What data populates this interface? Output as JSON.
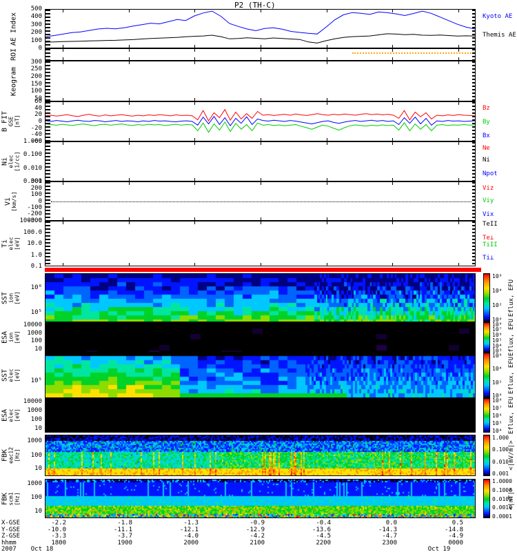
{
  "title": "P2 (TH-C)",
  "panels": {
    "ae": {
      "ylabel": [
        "AE Index"
      ],
      "yticks": [
        "500",
        "400",
        "300",
        "200",
        "100",
        "0"
      ],
      "legend": [
        {
          "label": "Kyoto AE",
          "color": "#0000ff"
        },
        {
          "label": "Themis AE",
          "color": "#000000"
        }
      ]
    },
    "roi": {
      "ylabel": [
        "ROI"
      ],
      "yticks": [],
      "legend": []
    },
    "keogram": {
      "ylabel": [
        "Keogram"
      ],
      "yticks": [
        "300",
        "250",
        "200",
        "150",
        "100",
        "50"
      ],
      "legend": []
    },
    "bfit": {
      "ylabel": [
        "B FIT",
        "GSE",
        "[nT]"
      ],
      "yticks": [
        "60",
        "40",
        "20",
        "0",
        "-20",
        "-40",
        "-60"
      ],
      "legend": [
        {
          "label": "Bz",
          "color": "#ff0000"
        },
        {
          "label": "By",
          "color": "#00cc00"
        },
        {
          "label": "Bx",
          "color": "#0000ff"
        }
      ]
    },
    "ni": {
      "ylabel": [
        "Ni",
        "elec",
        "[1/cc]"
      ],
      "yticks": [
        "1.000",
        "0.100",
        "0.010",
        "0.001"
      ],
      "legend": [
        {
          "label": "Ne",
          "color": "#ff0000"
        },
        {
          "label": "Ni",
          "color": "#000000"
        },
        {
          "label": "Npot",
          "color": "#0000ff"
        }
      ]
    },
    "vi": {
      "ylabel": [
        "Vi",
        "[km/s]"
      ],
      "yticks": [
        "300",
        "200",
        "100",
        "0",
        "-100",
        "-200",
        "-300"
      ],
      "legend": [
        {
          "label": "Viz",
          "color": "#ff0000"
        },
        {
          "label": "Viy",
          "color": "#00cc00"
        },
        {
          "label": "Vix",
          "color": "#0000ff"
        }
      ]
    },
    "ti": {
      "ylabel": [
        "Ti",
        "elec",
        "[eV]"
      ],
      "yticks": [
        "1000.0",
        "100.0",
        "10.0",
        "1.0",
        "0.1"
      ],
      "legend": [
        {
          "label": "TeII",
          "color": "#000000"
        },
        {
          "label": "Te⊥",
          "color": "#ff0000"
        },
        {
          "label": "TiII",
          "color": "#00cc00"
        },
        {
          "label": "Ti⊥",
          "color": "#0000ff"
        }
      ]
    },
    "sst_ion": {
      "ylabel": [
        "SST",
        "ion",
        "[eV]"
      ],
      "yticks": [
        "10⁶",
        "10⁵"
      ],
      "colorbar": {
        "ticks": [
          "10⁶",
          "10⁴",
          "10²",
          "10⁰"
        ],
        "unit": "Eflux, EFU"
      }
    },
    "esa_ion": {
      "ylabel": [
        "ESA",
        "ion",
        "[eV]"
      ],
      "yticks": [
        "10000",
        "1000",
        "100",
        "10"
      ],
      "colorbar": {
        "ticks": [
          "10⁸",
          "10⁷",
          "10⁶",
          "10⁵",
          "10⁴",
          "10³"
        ],
        "unit": "Eflux, EFU"
      }
    },
    "sst_elec": {
      "ylabel": [
        "SST",
        "elec",
        "[eV]"
      ],
      "yticks": [
        "10⁵"
      ],
      "colorbar": {
        "ticks": [
          "10⁶",
          "10⁴",
          "10²",
          "10⁰"
        ],
        "unit": "Eflux, EFU"
      }
    },
    "esa_elec": {
      "ylabel": [
        "ESA",
        "elec",
        "[eV]"
      ],
      "yticks": [
        "10000",
        "1000",
        "100",
        "10"
      ],
      "colorbar": {
        "ticks": [
          "10⁸",
          "10⁷",
          "10⁶",
          "10⁵",
          "10⁴"
        ],
        "unit": "Eflux, EFU"
      }
    },
    "fbk1": {
      "ylabel": [
        "FBK",
        "eac12",
        "[Hz]"
      ],
      "yticks": [
        "1000",
        "100",
        "10"
      ],
      "colorbar": {
        "ticks": [
          "1.000",
          "0.100",
          "0.010",
          "0.001"
        ],
        "unit": "<|mV/m|>"
      }
    },
    "fbk2": {
      "ylabel": [
        "FBK",
        "scm1",
        "[Hz]"
      ],
      "yticks": [
        "1000",
        "100",
        "10"
      ],
      "colorbar": {
        "ticks": [
          "1.0000",
          "0.1000",
          "0.0100",
          "0.0010",
          "0.0001"
        ],
        "unit": "<|nT|>"
      }
    }
  },
  "xaxis": {
    "row_labels": [
      "X-GSE",
      "Y-GSE",
      "Z-GSE",
      "hhmm",
      "2007"
    ],
    "tick_times": [
      "1800",
      "1900",
      "2000",
      "2100",
      "2200",
      "2300",
      "0000"
    ],
    "columns": [
      [
        "-2.2",
        "-10.0",
        "-3.3",
        "1800",
        "Oct 18"
      ],
      [
        "-1.8",
        "-11.1",
        "-3.7",
        "1900",
        ""
      ],
      [
        "-1.3",
        "-12.1",
        "-4.0",
        "2000",
        ""
      ],
      [
        "-0.9",
        "-12.9",
        "-4.2",
        "2100",
        ""
      ],
      [
        "-0.4",
        "-13.6",
        "-4.5",
        "2200",
        ""
      ],
      [
        "0.0",
        "-14.3",
        "-4.7",
        "2300",
        ""
      ],
      [
        "0.5",
        "-14.8",
        "-4.9",
        "0000",
        "Oct 19"
      ]
    ]
  },
  "chart_data": [
    {
      "type": "line",
      "title": "AE Index",
      "ylabel": "AE Index",
      "ylim": [
        0,
        500
      ],
      "x_range": [
        "Oct 18 2007 ~17:45",
        "Oct 19 2007 ~00:30"
      ],
      "grid": false,
      "legend_position": "right",
      "series": [
        {
          "name": "Kyoto AE",
          "color": "#0000ff",
          "values": [
            150,
            165,
            185,
            205,
            215,
            235,
            255,
            265,
            258,
            272,
            295,
            315,
            335,
            325,
            355,
            385,
            372,
            435,
            475,
            500,
            430,
            330,
            290,
            255,
            232,
            262,
            272,
            252,
            222,
            208,
            196,
            186,
            280,
            380,
            450,
            480,
            470,
            455,
            488,
            478,
            462,
            440,
            468,
            500,
            470,
            420,
            370,
            320,
            280,
            255
          ]
        },
        {
          "name": "Themis AE",
          "color": "#000000",
          "values": [
            75,
            78,
            82,
            85,
            88,
            92,
            95,
            98,
            100,
            105,
            110,
            118,
            125,
            130,
            135,
            140,
            148,
            155,
            160,
            170,
            150,
            120,
            125,
            135,
            128,
            120,
            132,
            125,
            118,
            112,
            78,
            62,
            95,
            120,
            140,
            150,
            155,
            160,
            175,
            190,
            185,
            178,
            182,
            170,
            168,
            172,
            165,
            158,
            162,
            158
          ]
        }
      ]
    },
    {
      "type": "line",
      "title": "B FIT GSE [nT]",
      "ylabel": "B FIT GSE [nT]",
      "ylim": [
        -60,
        60
      ],
      "grid": false,
      "series": [
        {
          "name": "Bz",
          "color": "#ff0000",
          "values": [
            18,
            20,
            17,
            19,
            22,
            18,
            16,
            20,
            23,
            19,
            17,
            21,
            18,
            20,
            22,
            19,
            17,
            20,
            18,
            21,
            19,
            22,
            20,
            18,
            21,
            19,
            20,
            18,
            5,
            35,
            2,
            28,
            12,
            38,
            4,
            30,
            8,
            25,
            10,
            32,
            20,
            22,
            19,
            21,
            23,
            20,
            24,
            21,
            19,
            22,
            25,
            22,
            20,
            23,
            21,
            24,
            22,
            20,
            23,
            25,
            22,
            24,
            21,
            23,
            20,
            10,
            35,
            5,
            30,
            15,
            28,
            8,
            20,
            18,
            21,
            19,
            22,
            20,
            19,
            18
          ]
        },
        {
          "name": "By",
          "color": "#00cc00",
          "values": [
            -8,
            -10,
            -12,
            -9,
            -11,
            -13,
            -10,
            -8,
            -11,
            -14,
            -10,
            -9,
            -12,
            -10,
            -8,
            -11,
            -13,
            -10,
            -12,
            -9,
            -11,
            -10,
            -13,
            -11,
            -9,
            -12,
            -10,
            -11,
            -30,
            -5,
            -35,
            -8,
            -28,
            -2,
            -32,
            -6,
            -25,
            -10,
            -30,
            -5,
            -12,
            -10,
            -13,
            -11,
            -14,
            -12,
            -10,
            -15,
            -20,
            -25,
            -18,
            -12,
            -15,
            -22,
            -28,
            -20,
            -14,
            -11,
            -13,
            -15,
            -12,
            -14,
            -11,
            -13,
            -12,
            -28,
            -4,
            -30,
            -8,
            -25,
            -10,
            -30,
            -12,
            -10,
            -13,
            -11,
            -12,
            -10,
            -12,
            -11
          ]
        },
        {
          "name": "Bx",
          "color": "#0000ff",
          "values": [
            2,
            0,
            3,
            1,
            -1,
            2,
            4,
            1,
            0,
            3,
            2,
            -1,
            1,
            3,
            0,
            2,
            1,
            -1,
            2,
            0,
            3,
            1,
            2,
            0,
            -1,
            1,
            2,
            0,
            -12,
            14,
            -8,
            16,
            -10,
            12,
            -14,
            10,
            -6,
            15,
            -10,
            8,
            3,
            1,
            4,
            2,
            0,
            3,
            1,
            -2,
            -5,
            -8,
            -4,
            0,
            2,
            -3,
            -6,
            -2,
            1,
            3,
            0,
            2,
            4,
            1,
            3,
            0,
            2,
            -10,
            12,
            -6,
            14,
            -8,
            10,
            -12,
            2,
            0,
            3,
            1,
            2,
            0,
            1,
            2
          ]
        }
      ]
    },
    {
      "type": "heatmap",
      "title": "SST ion [eV]",
      "y_scale": "log",
      "y_ticks": [
        "10⁵",
        "10⁶"
      ],
      "zlabel": "Eflux, EFU",
      "z_ticks": [
        "10⁰",
        "10²",
        "10⁴",
        "10⁶"
      ],
      "description": "Ion energetic-particle spectrogram: dark blue background, scattered cyan blocks mid-energies, cyan-green band and yellow-green strip at lowest energies; fine vertical striping in right third."
    },
    {
      "type": "heatmap",
      "title": "ESA ion [eV]",
      "y_scale": "log",
      "y_ticks": [
        "10",
        "100",
        "1000",
        "10000"
      ],
      "zlabel": "Eflux, EFU",
      "z_ticks": [
        "10³",
        "10⁴",
        "10⁵",
        "10⁶",
        "10⁷",
        "10⁸"
      ],
      "description": "No data: panel almost entirely black with rare faint dark-purple pixels."
    },
    {
      "type": "heatmap",
      "title": "SST elec [eV]",
      "y_scale": "log",
      "y_ticks": [
        "10⁵"
      ],
      "zlabel": "Eflux, EFU",
      "z_ticks": [
        "10⁰",
        "10²",
        "10⁴",
        "10⁶"
      ],
      "description": "Electron spectrogram: green-to-yellow high flux at low energies on left quarter, fading to blue/cyan mosaic across remainder."
    },
    {
      "type": "heatmap",
      "title": "ESA elec [eV]",
      "y_scale": "log",
      "y_ticks": [
        "10",
        "100",
        "1000",
        "10000"
      ],
      "zlabel": "Eflux, EFU",
      "z_ticks": [
        "10⁴",
        "10⁵",
        "10⁶",
        "10⁷",
        "10⁸"
      ],
      "description": "No data: panel entirely black."
    },
    {
      "type": "heatmap",
      "title": "FBK eac12 [Hz]",
      "y_scale": "log",
      "y_ticks": [
        "10",
        "100",
        "1000"
      ],
      "zlabel": "<|mV/m|>",
      "z_ticks": [
        "0.001",
        "0.010",
        "0.100",
        "1.000"
      ],
      "description": "Filter-bank E-field wave power: vertical stripes, dark blue at high frequency, blue/cyan/green mid band with orange-red bursts, yellow-orange band at lowest frequencies."
    },
    {
      "type": "heatmap",
      "title": "FBK scm1 [Hz]",
      "y_scale": "log",
      "y_ticks": [
        "10",
        "100",
        "1000"
      ],
      "zlabel": "<|nT|>",
      "z_ticks": [
        "0.0001",
        "0.0010",
        "0.0100",
        "0.1000",
        "1.0000"
      ],
      "description": "Filter-bank search-coil wave power: blue band at high frequency, cyan mid band, green-yellow band and multicoloured fine stripes at lowest frequencies."
    }
  ]
}
